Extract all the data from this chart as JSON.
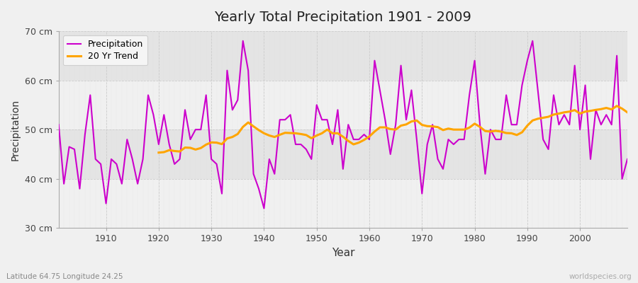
{
  "title": "Yearly Total Precipitation 1901 - 2009",
  "xlabel": "Year",
  "ylabel": "Precipitation",
  "subtitle": "Latitude 64.75 Longitude 24.25",
  "watermark": "worldspecies.org",
  "ylim": [
    30,
    70
  ],
  "yticks": [
    30,
    40,
    50,
    60,
    70
  ],
  "ytick_labels": [
    "30 cm",
    "40 cm",
    "50 cm",
    "60 cm",
    "70 cm"
  ],
  "years": [
    1901,
    1902,
    1903,
    1904,
    1905,
    1906,
    1907,
    1908,
    1909,
    1910,
    1911,
    1912,
    1913,
    1914,
    1915,
    1916,
    1917,
    1918,
    1919,
    1920,
    1921,
    1922,
    1923,
    1924,
    1925,
    1926,
    1927,
    1928,
    1929,
    1930,
    1931,
    1932,
    1933,
    1934,
    1935,
    1936,
    1937,
    1938,
    1939,
    1940,
    1941,
    1942,
    1943,
    1944,
    1945,
    1946,
    1947,
    1948,
    1949,
    1950,
    1951,
    1952,
    1953,
    1954,
    1955,
    1956,
    1957,
    1958,
    1959,
    1960,
    1961,
    1962,
    1963,
    1964,
    1965,
    1966,
    1967,
    1968,
    1969,
    1970,
    1971,
    1972,
    1973,
    1974,
    1975,
    1976,
    1977,
    1978,
    1979,
    1980,
    1981,
    1982,
    1983,
    1984,
    1985,
    1986,
    1987,
    1988,
    1989,
    1990,
    1991,
    1992,
    1993,
    1994,
    1995,
    1996,
    1997,
    1998,
    1999,
    2000,
    2001,
    2002,
    2003,
    2004,
    2005,
    2006,
    2007,
    2008,
    2009
  ],
  "precip": [
    51,
    39,
    46.5,
    46,
    38,
    49,
    57,
    44,
    43,
    35,
    44,
    43,
    39,
    48,
    44,
    39,
    44,
    57,
    53,
    47,
    53,
    47,
    43,
    44,
    54,
    48,
    50,
    50,
    57,
    44,
    43,
    37,
    62,
    54,
    56,
    68,
    62,
    41,
    38,
    34,
    44,
    41,
    52,
    52,
    53,
    47,
    47,
    46,
    44,
    55,
    52,
    52,
    47,
    54,
    42,
    51,
    48,
    48,
    49,
    48,
    64,
    58,
    52,
    45,
    51,
    63,
    52,
    58,
    48,
    37,
    47,
    51,
    44,
    42,
    48,
    47,
    48,
    48,
    57,
    64,
    51,
    41,
    50,
    48,
    48,
    57,
    51,
    51,
    59,
    64,
    68,
    58,
    48,
    46,
    57,
    51,
    53,
    51,
    63,
    50,
    59,
    44,
    54,
    51,
    53,
    51,
    65,
    40,
    44
  ],
  "precip_color": "#cc00cc",
  "trend_color": "#ffa500",
  "bg_color": "#f0f0f0",
  "plot_bg_light": "#f5f5f5",
  "plot_bg_dark": "#e8e8e8",
  "grid_color": "#cccccc",
  "legend_bg": "#f8f8f8",
  "band_colors": [
    "#f0f0f0",
    "#e4e4e4"
  ]
}
